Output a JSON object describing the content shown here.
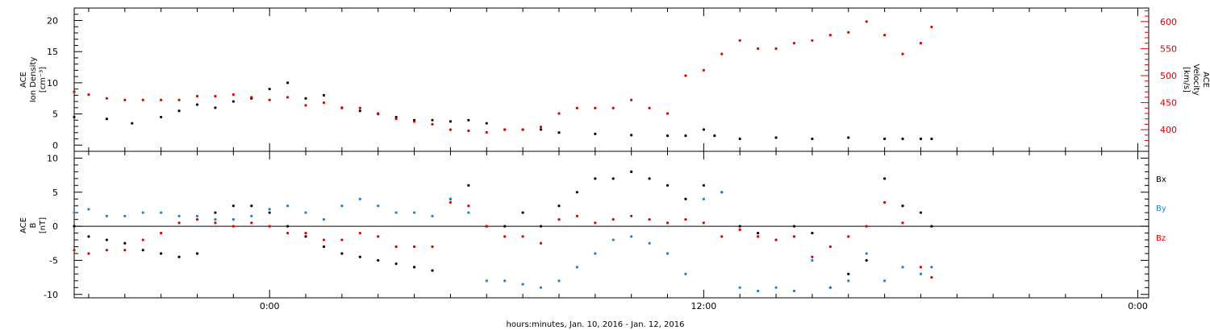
{
  "figure": {
    "xlabel": "hours:minutes, Jan. 10, 2016 - Jan. 12, 2016",
    "x_tick_labels": [
      "0:00",
      "12:00",
      "0:00"
    ],
    "x_tick_hours": [
      0,
      12,
      24
    ],
    "x_range_hours": [
      -5.4,
      24.3
    ]
  },
  "chart_data": [
    {
      "type": "scatter",
      "panel": "top",
      "ylabel_left": [
        "ACE",
        "Ion Density",
        "[cm⁻³]"
      ],
      "ylabel_right": [
        "ACE",
        "Velocity",
        "[km/s]"
      ],
      "ylim_left": [
        -1,
        22
      ],
      "ylim_right": [
        360,
        625
      ],
      "left_ticks": [
        0,
        5,
        10,
        15,
        20
      ],
      "right_ticks": [
        400,
        450,
        500,
        550,
        600
      ],
      "colors": {
        "density": "#000000",
        "velocity": "#e00000"
      },
      "series": [
        {
          "name": "",
          "axis": "left",
          "color": "#000000",
          "x": [
            -5.4,
            -4.5,
            -3.8,
            -3.0,
            -2.5,
            -2.0,
            -1.5,
            -1.0,
            -0.5,
            0.0,
            0.5,
            1.0,
            1.5,
            2.0,
            2.5,
            3.0,
            3.5,
            4.0,
            4.5,
            5.0,
            5.5,
            6.0,
            6.5,
            7.0,
            7.5,
            8.0,
            9.0,
            10.0,
            11.0,
            11.5,
            12.0,
            12.3,
            13.0,
            14.0,
            15.0,
            16.0,
            17.0,
            17.5,
            18.0,
            18.3
          ],
          "y": [
            4.5,
            4.2,
            3.5,
            4.5,
            5.5,
            6.5,
            6.0,
            7.0,
            7.5,
            9.0,
            10.0,
            7.5,
            8.0,
            6.0,
            5.5,
            5.0,
            4.5,
            4.0,
            4.0,
            3.8,
            4.0,
            3.5,
            2.5,
            2.5,
            2.5,
            2.0,
            1.8,
            1.6,
            1.5,
            1.5,
            2.5,
            1.5,
            1.0,
            1.2,
            1.0,
            1.2,
            1.0,
            1.0,
            1.0,
            1.0
          ]
        },
        {
          "name": "",
          "axis": "right",
          "color": "#e00000",
          "x": [
            -5.4,
            -5.0,
            -4.5,
            -4.0,
            -3.5,
            -3.0,
            -2.5,
            -2.0,
            -1.5,
            -1.0,
            -0.5,
            0.0,
            0.5,
            1.0,
            1.5,
            2.0,
            2.5,
            3.0,
            3.5,
            4.0,
            4.5,
            5.0,
            5.5,
            6.0,
            6.5,
            7.0,
            7.5,
            8.0,
            8.5,
            9.0,
            9.5,
            10.0,
            10.5,
            11.0,
            11.5,
            12.0,
            12.5,
            13.0,
            13.5,
            14.0,
            14.5,
            15.0,
            15.5,
            16.0,
            16.5,
            17.0,
            17.5,
            18.0,
            18.3
          ],
          "y": [
            470,
            465,
            458,
            455,
            455,
            455,
            455,
            462,
            462,
            465,
            460,
            455,
            460,
            445,
            450,
            440,
            440,
            430,
            420,
            415,
            410,
            400,
            398,
            395,
            400,
            400,
            405,
            430,
            440,
            440,
            440,
            455,
            440,
            430,
            500,
            510,
            540,
            565,
            550,
            550,
            560,
            565,
            575,
            580,
            600,
            575,
            540,
            560,
            590
          ]
        }
      ]
    },
    {
      "type": "scatter",
      "panel": "bottom",
      "ylabel": [
        "ACE",
        "B",
        "[nT]"
      ],
      "ylim": [
        -10.5,
        11
      ],
      "y_ticks": [
        -10,
        -5,
        0,
        5,
        10
      ],
      "legend": [
        "Bx",
        "By",
        "Bz"
      ],
      "legend_placement": "right",
      "series": [
        {
          "name": "Bx",
          "color": "#000000",
          "x": [
            -5.4,
            -5.0,
            -4.5,
            -4.0,
            -3.5,
            -3.0,
            -2.5,
            -2.0,
            -1.5,
            -1.0,
            -0.5,
            0.0,
            0.5,
            1.0,
            1.5,
            2.0,
            2.5,
            3.0,
            3.5,
            4.0,
            4.5,
            5.0,
            5.5,
            6.0,
            6.5,
            7.0,
            7.5,
            8.0,
            8.5,
            9.0,
            9.5,
            10.0,
            10.5,
            11.0,
            11.5,
            12.0,
            12.5,
            13.0,
            13.5,
            14.0,
            14.5,
            15.0,
            15.5,
            16.0,
            16.5,
            17.0,
            17.5,
            18.0,
            18.3
          ],
          "y": [
            0.0,
            -1.5,
            -2.0,
            -2.5,
            -3.5,
            -4.0,
            -4.5,
            -4.0,
            2.0,
            3.0,
            3.0,
            2.0,
            0.0,
            -1.5,
            -3.0,
            -4.0,
            -4.5,
            -5.0,
            -5.5,
            -6.0,
            -6.5,
            4.0,
            6.0,
            0.0,
            0.0,
            2.0,
            0.0,
            3.0,
            5.0,
            7.0,
            7.0,
            8.0,
            7.0,
            6.0,
            4.0,
            6.0,
            5.0,
            0.0,
            -1.0,
            -2.0,
            0.0,
            -1.0,
            -9.0,
            -7.0,
            -5.0,
            7.0,
            3.0,
            2.0,
            0.0
          ]
        },
        {
          "name": "By",
          "color": "#1a7fd8",
          "x": [
            -5.4,
            -5.0,
            -4.5,
            -4.0,
            -3.5,
            -3.0,
            -2.5,
            -2.0,
            -1.5,
            -1.0,
            -0.5,
            0.0,
            0.5,
            1.0,
            1.5,
            2.0,
            2.5,
            3.0,
            3.5,
            4.0,
            4.5,
            5.0,
            5.5,
            6.0,
            6.5,
            7.0,
            7.5,
            8.0,
            8.5,
            9.0,
            9.5,
            10.0,
            10.5,
            11.0,
            11.5,
            12.0,
            12.5,
            13.0,
            13.5,
            14.0,
            14.5,
            15.0,
            15.5,
            16.0,
            16.5,
            17.0,
            17.5,
            18.0,
            18.3
          ],
          "y": [
            2.0,
            2.5,
            1.5,
            1.5,
            2.0,
            2.0,
            1.5,
            1.5,
            1.0,
            1.0,
            1.5,
            2.5,
            3.0,
            2.0,
            1.0,
            3.0,
            4.0,
            3.0,
            2.0,
            2.0,
            1.5,
            4.0,
            2.0,
            -8.0,
            -8.0,
            -8.5,
            -9.0,
            -8.0,
            -6.0,
            -4.0,
            -2.0,
            -1.5,
            -2.5,
            -4.0,
            -7.0,
            4.0,
            5.0,
            -9.0,
            -9.5,
            -9.0,
            -9.5,
            -5.0,
            -9.0,
            -8.0,
            -4.0,
            -8.0,
            -6.0,
            -7.0,
            -6.0
          ]
        },
        {
          "name": "Bz",
          "color": "#e00000",
          "x": [
            -5.4,
            -5.0,
            -4.5,
            -4.0,
            -3.5,
            -3.0,
            -2.5,
            -2.0,
            -1.5,
            -1.0,
            -0.5,
            0.0,
            0.5,
            1.0,
            1.5,
            2.0,
            2.5,
            3.0,
            3.5,
            4.0,
            4.5,
            5.0,
            5.5,
            6.0,
            6.5,
            7.0,
            7.5,
            8.0,
            8.5,
            9.0,
            9.5,
            10.0,
            10.5,
            11.0,
            11.5,
            12.0,
            12.5,
            13.0,
            13.5,
            14.0,
            14.5,
            15.0,
            15.5,
            16.0,
            16.5,
            17.0,
            17.5,
            18.0,
            18.3
          ],
          "y": [
            -3.5,
            -4.0,
            -3.5,
            -3.5,
            -2.0,
            -1.0,
            0.5,
            1.0,
            0.5,
            0.0,
            0.5,
            0.0,
            -1.0,
            -1.0,
            -2.0,
            -2.0,
            -1.0,
            -1.5,
            -3.0,
            -3.0,
            -3.0,
            3.5,
            3.0,
            0.0,
            -1.5,
            -1.5,
            -2.5,
            1.0,
            1.5,
            0.5,
            1.0,
            1.5,
            1.0,
            0.5,
            1.0,
            0.5,
            -1.5,
            -0.5,
            -1.5,
            -2.0,
            -1.5,
            -4.5,
            -3.0,
            -1.5,
            0.0,
            3.5,
            0.5,
            -6.0,
            -7.5
          ]
        }
      ]
    }
  ]
}
